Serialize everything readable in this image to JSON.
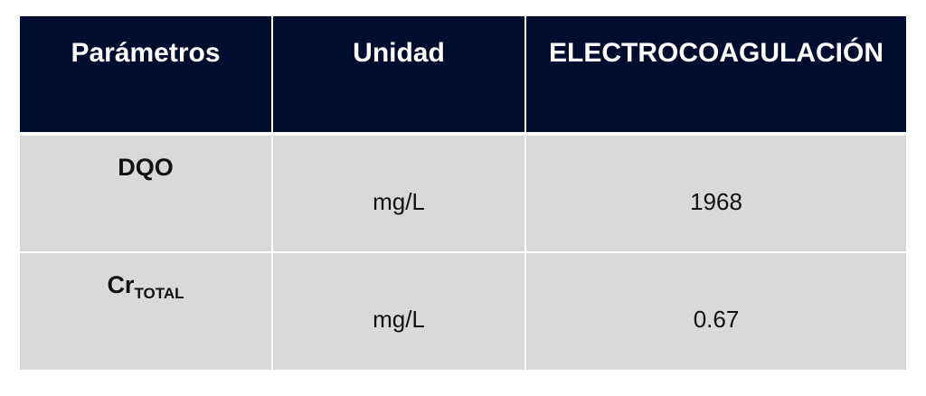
{
  "colors": {
    "header_bg": "#000d2e",
    "row_bg": "#d9d9d9",
    "header_text": "#ffffff"
  },
  "table": {
    "headers": [
      "Parámetros",
      "Unidad",
      "ELECTROCOAGULACIÓN"
    ],
    "rows": [
      {
        "parameter": "DQO",
        "parameter_sub": "",
        "unit": "mg/L",
        "value": "1968"
      },
      {
        "parameter": "Cr",
        "parameter_sub": "TOTAL",
        "unit": "mg/L",
        "value": "0.67"
      }
    ]
  }
}
